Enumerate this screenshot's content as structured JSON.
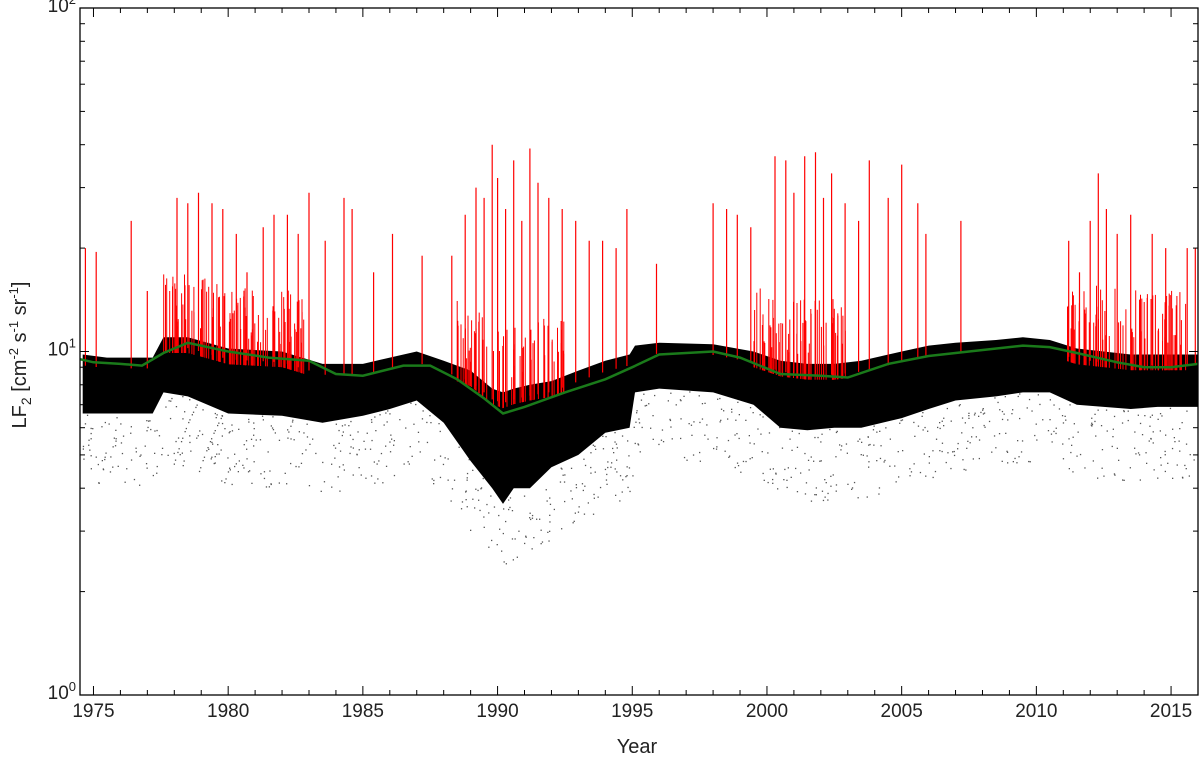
{
  "chart_data": {
    "type": "scatter",
    "title": "",
    "xlabel": "Year",
    "ylabel": {
      "base": "LF",
      "sub": "2",
      "unit_open": " [cm",
      "exp1": "-2",
      "s": " s",
      "exp2": "-1",
      "sr": " sr",
      "exp3": "-1",
      "close": "]"
    },
    "xlim": [
      1974.5,
      2016.0
    ],
    "ylim": [
      1,
      100
    ],
    "yscale": "log",
    "grid": false,
    "legend": "none",
    "x_ticks": [
      1975,
      1980,
      1985,
      1990,
      1995,
      2000,
      2005,
      2010,
      2015
    ],
    "x_tick_labels": [
      "1975",
      "1980",
      "1985",
      "1990",
      "1995",
      "2000",
      "2005",
      "2010",
      "2015"
    ],
    "y_ticks": [
      1,
      10,
      100
    ],
    "y_tick_labels": [
      {
        "base": "10",
        "exp": "0"
      },
      {
        "base": "10",
        "exp": "1"
      },
      {
        "base": "10",
        "exp": "2"
      }
    ],
    "colors": {
      "quiet_points": "#000000",
      "flare_points": "#ff0000",
      "trend_line": "#1a7a1a",
      "axes": "#000000"
    },
    "series": [
      {
        "style": "band",
        "color": "#000000",
        "x": [
          1974.6,
          1975.5,
          1976.5,
          1977.2,
          1977.6,
          1978.5,
          1980,
          1982,
          1983.5,
          1985,
          1986,
          1987,
          1988,
          1989,
          1989.8,
          1990.2,
          1990.6,
          1991.2,
          1992,
          1993,
          1994,
          1994.9,
          1995.1,
          1996,
          1998,
          1999.5,
          2000.5,
          2001.5,
          2002.5,
          2003.5,
          2005,
          2006,
          2007,
          2008.5,
          2009.5,
          2010.5,
          2011.5,
          2012.5,
          2013.5,
          2014.5,
          2015.5,
          2016
        ],
        "y_low": [
          6.6,
          6.6,
          6.6,
          6.6,
          7.6,
          7.4,
          6.6,
          6.5,
          6.2,
          6.5,
          6.8,
          7.2,
          6.2,
          4.8,
          4.0,
          3.6,
          4.0,
          4.0,
          4.6,
          5.0,
          5.8,
          6.0,
          7.6,
          7.8,
          7.6,
          7.0,
          6.0,
          5.9,
          6.0,
          6.0,
          6.4,
          6.8,
          7.2,
          7.4,
          7.6,
          7.6,
          7.0,
          6.9,
          6.8,
          6.9,
          6.9,
          6.9
        ],
        "y_high": [
          9.8,
          9.6,
          9.6,
          9.6,
          11.0,
          11.0,
          10.2,
          10.0,
          9.2,
          9.2,
          9.6,
          10.0,
          9.4,
          8.8,
          7.8,
          7.6,
          7.8,
          8.0,
          8.2,
          8.8,
          9.4,
          9.8,
          10.4,
          10.6,
          10.5,
          10.0,
          9.4,
          9.2,
          9.2,
          9.4,
          10.0,
          10.4,
          10.6,
          10.8,
          11.0,
          10.8,
          10.2,
          10.0,
          9.8,
          9.8,
          9.8,
          9.8
        ]
      },
      {
        "style": "spikes",
        "color": "#ff0000",
        "x": [
          1974.7,
          1975.1,
          1976.4,
          1977.0,
          1978.1,
          1978.5,
          1978.9,
          1979.4,
          1979.8,
          1980.3,
          1980.7,
          1981.3,
          1981.7,
          1982.2,
          1982.6,
          1983.0,
          1983.6,
          1984.3,
          1984.6,
          1985.4,
          1986.1,
          1987.2,
          1988.3,
          1988.8,
          1989.2,
          1989.5,
          1989.8,
          1990.0,
          1990.3,
          1990.6,
          1990.9,
          1991.2,
          1991.5,
          1991.9,
          1992.4,
          1992.9,
          1993.4,
          1993.9,
          1994.4,
          1994.8,
          1995.9,
          1998.0,
          1998.5,
          1998.9,
          1999.4,
          2000.3,
          2000.7,
          2001.0,
          2001.4,
          2001.8,
          2002.1,
          2002.4,
          2002.9,
          2003.4,
          2003.8,
          2004.5,
          2005.0,
          2005.6,
          2005.9,
          2007.2,
          2011.2,
          2011.6,
          2012.0,
          2012.3,
          2012.6,
          2013.0,
          2013.5,
          2014.3,
          2014.8,
          2015.6,
          2015.9
        ],
        "y": [
          20,
          19.5,
          24,
          15,
          28,
          27,
          29,
          27,
          26,
          22,
          17,
          23,
          25,
          25,
          22,
          29,
          21,
          28,
          26,
          17,
          22,
          19,
          19,
          25,
          30,
          28,
          40,
          32,
          26,
          36,
          24,
          39,
          31,
          28,
          26,
          24,
          21,
          21,
          20,
          26,
          18,
          27,
          26,
          25,
          23,
          37,
          36,
          29,
          37,
          38,
          28,
          33,
          27,
          24,
          36,
          28,
          35,
          27,
          22,
          24,
          21,
          17,
          24,
          33,
          26,
          22,
          25,
          22,
          20,
          20,
          20
        ]
      },
      {
        "style": "line",
        "name": "",
        "color": "#1a7a1a",
        "x": [
          1974.5,
          1975.0,
          1976.0,
          1976.8,
          1977.6,
          1978.5,
          1980.0,
          1981.5,
          1983.0,
          1984.0,
          1985.0,
          1986.5,
          1987.5,
          1988.5,
          1989.5,
          1990.2,
          1991.0,
          1992.5,
          1994.0,
          1995.0,
          1996.0,
          1998.0,
          1999.0,
          2000.5,
          2002.0,
          2003.0,
          2004.5,
          2006.0,
          2007.5,
          2009.5,
          2010.5,
          2011.5,
          2013.0,
          2014.0,
          2015.0,
          2016.0
        ],
        "y": [
          9.5,
          9.3,
          9.2,
          9.1,
          9.9,
          10.6,
          10.0,
          9.6,
          9.4,
          8.6,
          8.5,
          9.1,
          9.1,
          8.3,
          7.3,
          6.6,
          6.9,
          7.6,
          8.3,
          9.0,
          9.8,
          10.0,
          9.6,
          8.6,
          8.5,
          8.4,
          9.2,
          9.7,
          10.0,
          10.4,
          10.3,
          9.9,
          9.3,
          9.0,
          9.0,
          9.2
        ]
      }
    ]
  }
}
